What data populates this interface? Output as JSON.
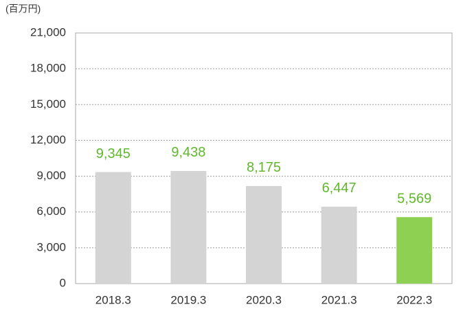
{
  "chart_data": {
    "type": "bar",
    "unit_label": "(百万円)",
    "categories": [
      "2018.3",
      "2019.3",
      "2020.3",
      "2021.3",
      "2022.3"
    ],
    "values": [
      9345,
      9438,
      8175,
      6447,
      5569
    ],
    "value_labels": [
      "9,345",
      "9,438",
      "8,175",
      "6,447",
      "5,569"
    ],
    "colors": [
      "#d4d4d4",
      "#d4d4d4",
      "#d4d4d4",
      "#d4d4d4",
      "#8ed152"
    ],
    "label_color": "#5fb82c",
    "ylim": [
      0,
      21000
    ],
    "yticks": [
      {
        "value": 0,
        "label": "0"
      },
      {
        "value": 3000,
        "label": "3,000"
      },
      {
        "value": 6000,
        "label": "6,000"
      },
      {
        "value": 9000,
        "label": "9,000"
      },
      {
        "value": 12000,
        "label": "12,000"
      },
      {
        "value": 15000,
        "label": "15,000"
      },
      {
        "value": 18000,
        "label": "18,000"
      },
      {
        "value": 21000,
        "label": "21,000"
      }
    ],
    "grid": true
  }
}
